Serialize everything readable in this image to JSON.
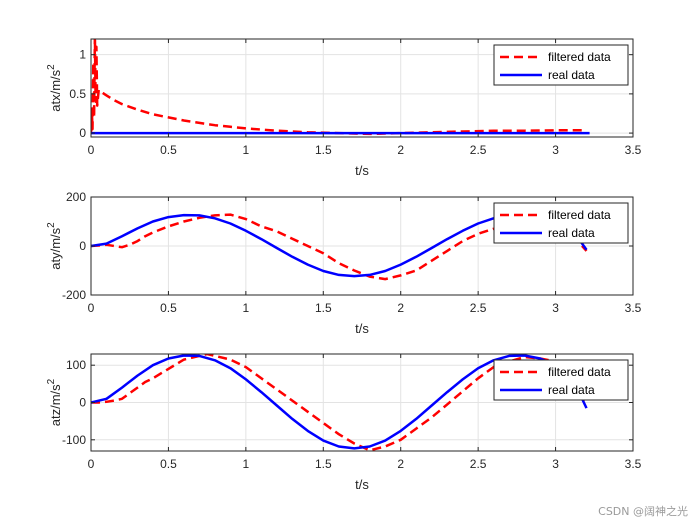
{
  "chart_data": [
    {
      "type": "line",
      "xlabel": "t/s",
      "ylabel": "atx/m/s",
      "ylabel_sup": "2",
      "xlim": [
        0,
        3.5
      ],
      "ylim": [
        -0.05,
        1.2
      ],
      "xticks": [
        0,
        0.5,
        1,
        1.5,
        2,
        2.5,
        3,
        3.5
      ],
      "yticks": [
        0,
        0.5,
        1
      ],
      "grid": true,
      "legend": "top-right",
      "series": [
        {
          "name": "filtered data",
          "style": "dashed",
          "color": "#ff0000",
          "x": [
            0,
            0.005,
            0.01,
            0.015,
            0.02,
            0.025,
            0.03,
            0.035,
            0.04,
            0.05,
            0.07,
            0.1,
            0.15,
            0.2,
            0.3,
            0.4,
            0.5,
            0.6,
            0.7,
            0.8,
            0.9,
            1.0,
            1.2,
            1.4,
            1.6,
            1.8,
            2.0,
            2.2,
            2.4,
            2.6,
            2.8,
            3.0,
            3.2
          ],
          "y": [
            0,
            0.3,
            0.05,
            0.9,
            0.2,
            1.25,
            0.4,
            1.1,
            0.35,
            0.55,
            0.52,
            0.48,
            0.42,
            0.37,
            0.3,
            0.24,
            0.2,
            0.16,
            0.13,
            0.1,
            0.08,
            0.06,
            0.03,
            0.01,
            0.0,
            -0.01,
            0.0,
            0.01,
            0.02,
            0.03,
            0.03,
            0.035,
            0.035
          ]
        },
        {
          "name": "real data",
          "style": "solid",
          "color": "#0000ff",
          "x": [
            0,
            3.22
          ],
          "y": [
            0,
            0
          ]
        }
      ]
    },
    {
      "type": "line",
      "xlabel": "t/s",
      "ylabel": "aty/m/s",
      "ylabel_sup": "2",
      "xlim": [
        0,
        3.5
      ],
      "ylim": [
        -200,
        200
      ],
      "xticks": [
        0,
        0.5,
        1,
        1.5,
        2,
        2.5,
        3,
        3.5
      ],
      "yticks": [
        -200,
        0,
        200
      ],
      "grid": true,
      "legend": "top-right",
      "series": [
        {
          "name": "filtered data",
          "style": "dashed",
          "color": "#ff0000",
          "x": [
            0,
            0.05,
            0.1,
            0.15,
            0.2,
            0.25,
            0.3,
            0.35,
            0.4,
            0.5,
            0.6,
            0.7,
            0.8,
            0.9,
            1.0,
            1.1,
            1.2,
            1.3,
            1.4,
            1.5,
            1.6,
            1.7,
            1.8,
            1.9,
            2.0,
            2.1,
            2.2,
            2.3,
            2.4,
            2.5,
            2.6,
            2.7,
            2.8,
            2.9,
            3.0,
            3.1,
            3.2
          ],
          "y": [
            0,
            2,
            5,
            0,
            -5,
            5,
            20,
            40,
            55,
            80,
            100,
            115,
            125,
            128,
            110,
            80,
            60,
            30,
            0,
            -30,
            -70,
            -100,
            -125,
            -135,
            -120,
            -100,
            -60,
            -20,
            20,
            50,
            70,
            80,
            90,
            95,
            90,
            50,
            -20
          ]
        },
        {
          "name": "real data",
          "style": "solid",
          "color": "#0000ff",
          "x": [
            0,
            0.1,
            0.2,
            0.3,
            0.4,
            0.5,
            0.6,
            0.7,
            0.8,
            0.9,
            1.0,
            1.1,
            1.2,
            1.3,
            1.4,
            1.5,
            1.6,
            1.7,
            1.8,
            1.9,
            2.0,
            2.1,
            2.2,
            2.3,
            2.4,
            2.5,
            2.6,
            2.7,
            2.8,
            2.9,
            3.0,
            3.1,
            3.2
          ],
          "y": [
            0,
            10,
            40,
            72,
            100,
            118,
            126,
            125,
            113,
            92,
            62,
            28,
            -8,
            -44,
            -76,
            -102,
            -118,
            -123,
            -118,
            -102,
            -76,
            -44,
            -8,
            28,
            62,
            92,
            113,
            125,
            126,
            118,
            100,
            72,
            -15
          ]
        }
      ]
    },
    {
      "type": "line",
      "xlabel": "t/s",
      "ylabel": "atz/m/s",
      "ylabel_sup": "2",
      "xlim": [
        0,
        3.5
      ],
      "ylim": [
        -130,
        130
      ],
      "xticks": [
        0,
        0.5,
        1,
        1.5,
        2,
        2.5,
        3,
        3.5
      ],
      "yticks": [
        -100,
        0,
        100
      ],
      "grid": true,
      "legend": "top-right",
      "series": [
        {
          "name": "filtered data",
          "style": "dashed",
          "color": "#ff0000",
          "x": [
            0,
            0.05,
            0.1,
            0.15,
            0.2,
            0.25,
            0.3,
            0.35,
            0.4,
            0.5,
            0.6,
            0.7,
            0.75,
            0.8,
            0.9,
            1.0,
            1.1,
            1.2,
            1.3,
            1.4,
            1.5,
            1.6,
            1.7,
            1.8,
            1.9,
            2.0,
            2.1,
            2.2,
            2.3,
            2.4,
            2.5,
            2.6,
            2.7,
            2.8,
            2.9,
            3.0,
            3.1,
            3.2
          ],
          "y": [
            0,
            0,
            2,
            5,
            10,
            25,
            40,
            55,
            65,
            90,
            115,
            125,
            130,
            125,
            115,
            95,
            65,
            35,
            5,
            -25,
            -55,
            -85,
            -110,
            -128,
            -118,
            -100,
            -70,
            -40,
            -5,
            30,
            65,
            95,
            110,
            122,
            118,
            110,
            60,
            0
          ]
        },
        {
          "name": "real data",
          "style": "solid",
          "color": "#0000ff",
          "x": [
            0,
            0.1,
            0.2,
            0.3,
            0.4,
            0.5,
            0.6,
            0.7,
            0.8,
            0.9,
            1.0,
            1.1,
            1.2,
            1.3,
            1.4,
            1.5,
            1.6,
            1.7,
            1.8,
            1.9,
            2.0,
            2.1,
            2.2,
            2.3,
            2.4,
            2.5,
            2.6,
            2.7,
            2.8,
            2.9,
            3.0,
            3.1,
            3.2
          ],
          "y": [
            0,
            10,
            40,
            72,
            100,
            118,
            126,
            125,
            113,
            92,
            62,
            28,
            -8,
            -44,
            -76,
            -102,
            -118,
            -123,
            -118,
            -102,
            -76,
            -44,
            -8,
            28,
            62,
            92,
            113,
            125,
            126,
            118,
            100,
            72,
            -15
          ]
        }
      ]
    }
  ],
  "watermark": "CSDN @阔神之光"
}
